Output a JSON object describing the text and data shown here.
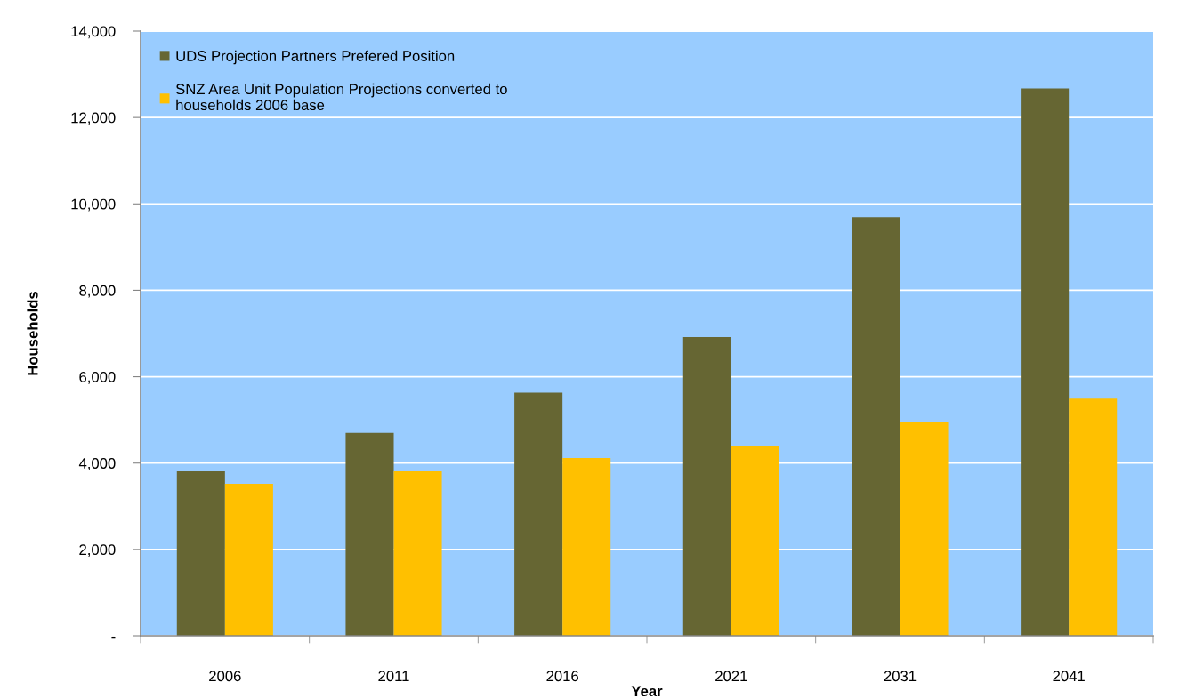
{
  "chart_data": {
    "type": "bar",
    "categories": [
      "2006",
      "2011",
      "2016",
      "2021",
      "2031",
      "2041"
    ],
    "series": [
      {
        "name": "UDS Projection Partners Prefered Position",
        "color": "#666633",
        "values": [
          3810,
          4700,
          5630,
          6920,
          9690,
          12670
        ]
      },
      {
        "name": "SNZ Area Unit Population Projections converted to\nhouseholds 2006 base",
        "color": "#ffc000",
        "values": [
          3520,
          3810,
          4120,
          4390,
          4940,
          5490
        ]
      }
    ],
    "xlabel": "Year",
    "ylabel": "Households",
    "ylim": [
      0,
      14000
    ],
    "yticks": [
      {
        "value": 0,
        "label": "-"
      },
      {
        "value": 2000,
        "label": "2,000"
      },
      {
        "value": 4000,
        "label": "4,000"
      },
      {
        "value": 6000,
        "label": "6,000"
      },
      {
        "value": 8000,
        "label": "8,000"
      },
      {
        "value": 10000,
        "label": "10,000"
      },
      {
        "value": 12000,
        "label": "12,000"
      },
      {
        "value": 14000,
        "label": "14,000"
      }
    ],
    "grid": "y",
    "legend": "top left"
  }
}
